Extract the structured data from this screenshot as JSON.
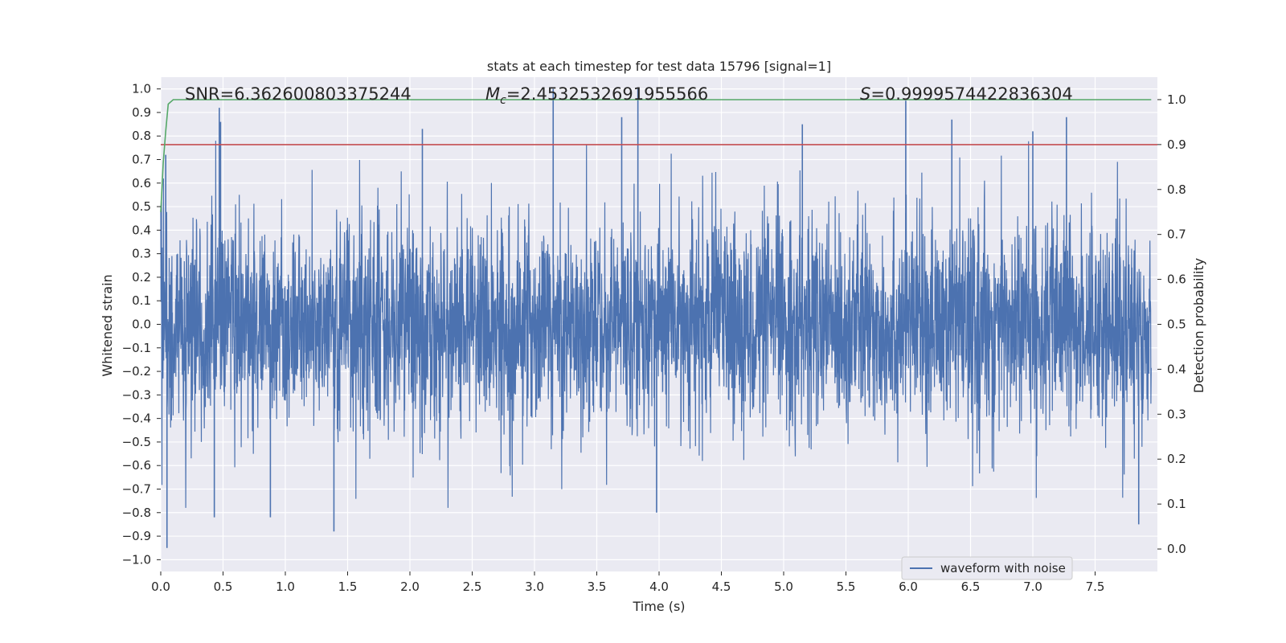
{
  "chart_data": {
    "type": "line",
    "title": "stats at each timestep for test data 15796 [signal=1]",
    "xlabel": "Time (s)",
    "ylabel": "Whitened strain",
    "ylabel_right": "Detection probability",
    "xlim": [
      0.0,
      8.0
    ],
    "ylim": [
      -1.05,
      1.05
    ],
    "ylim_right": [
      -0.05,
      1.05
    ],
    "xticks": [
      "0.0",
      "0.5",
      "1.0",
      "1.5",
      "2.0",
      "2.5",
      "3.0",
      "3.5",
      "4.0",
      "4.5",
      "5.0",
      "5.5",
      "6.0",
      "6.5",
      "7.0",
      "7.5"
    ],
    "yticks": [
      "1.0",
      "0.9",
      "0.8",
      "0.7",
      "0.6",
      "0.5",
      "0.4",
      "0.3",
      "0.2",
      "0.1",
      "0.0",
      "−0.1",
      "−0.2",
      "−0.3",
      "−0.4",
      "−0.5",
      "−0.6",
      "−0.7",
      "−0.8",
      "−0.9",
      "−1.0"
    ],
    "yticks_right": [
      "1.0",
      "0.9",
      "0.8",
      "0.7",
      "0.6",
      "0.5",
      "0.4",
      "0.3",
      "0.2",
      "0.1",
      "0.0"
    ],
    "grid": true,
    "legend_position": "lower-right",
    "annotations": {
      "snr": "SNR=6.362600803375244",
      "mc_symbol": "M",
      "mc_sub": "c",
      "mc_value": "=2.4532532691955566",
      "s_symbol": "S",
      "s_value": "=0.9999574422836304"
    },
    "series": [
      {
        "name": "waveform with noise",
        "axis": "left",
        "color": "#4c72b0",
        "style": "dense noisy waveform",
        "envelope": [
          0.35,
          0.35
        ],
        "spikes": [
          {
            "x": 0.04,
            "y": 0.72
          },
          {
            "x": 0.05,
            "y": -0.95
          },
          {
            "x": 0.47,
            "y": 0.92
          },
          {
            "x": 0.48,
            "y": 0.86
          },
          {
            "x": 0.43,
            "y": -0.82
          },
          {
            "x": 0.88,
            "y": -0.82
          },
          {
            "x": 1.39,
            "y": -0.88
          },
          {
            "x": 2.1,
            "y": 0.83
          },
          {
            "x": 3.15,
            "y": 1.0
          },
          {
            "x": 3.83,
            "y": 1.0
          },
          {
            "x": 3.7,
            "y": 0.88
          },
          {
            "x": 3.98,
            "y": -0.8
          },
          {
            "x": 5.15,
            "y": 0.85
          },
          {
            "x": 5.98,
            "y": 0.95
          },
          {
            "x": 6.35,
            "y": 0.87
          },
          {
            "x": 7.27,
            "y": 0.88
          },
          {
            "x": 7.0,
            "y": 0.82
          },
          {
            "x": 7.85,
            "y": -0.85
          }
        ]
      },
      {
        "name": "detection probability",
        "axis": "right",
        "color": "#55a868",
        "x": [
          0.0,
          0.02,
          0.04,
          0.06,
          0.1,
          7.95
        ],
        "y": [
          0.75,
          0.86,
          0.93,
          0.99,
          1.0,
          1.0
        ]
      },
      {
        "name": "threshold",
        "axis": "right",
        "color": "#c44e52",
        "x": [
          0.0,
          8.0
        ],
        "y": [
          0.9,
          0.9
        ]
      }
    ]
  }
}
